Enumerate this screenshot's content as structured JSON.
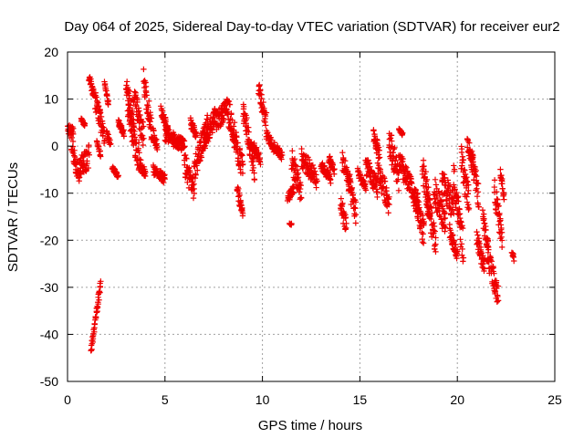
{
  "chart_data": {
    "type": "scatter",
    "title": "Day 064 of 2025, Sidereal Day-to-day VTEC variation (SDTVAR) for receiver eur2",
    "xlabel": "GPS time / hours",
    "ylabel": "SDTVAR / TECUs",
    "xlim": [
      0,
      25
    ],
    "ylim": [
      -50,
      20
    ],
    "xticks": [
      0,
      5,
      10,
      15,
      20,
      25
    ],
    "yticks": [
      -50,
      -40,
      -30,
      -20,
      -10,
      0,
      10,
      20
    ],
    "xtick_labels": [
      "0",
      "5",
      "10",
      "15",
      "20",
      "25"
    ],
    "ytick_labels": [
      "-50",
      "-40",
      "-30",
      "-20",
      "-10",
      "0",
      "10",
      "20"
    ],
    "grid": true,
    "marker": "+",
    "color": "#ee0000",
    "series": [
      {
        "name": "eur2",
        "segments": [
          [
            0.0,
            0.3,
            3.5,
            2.5,
            1.5
          ],
          [
            0.2,
            0.6,
            0.5,
            -7.0,
            2.0
          ],
          [
            0.6,
            1.1,
            -5.0,
            -2.0,
            2.5
          ],
          [
            0.7,
            0.9,
            5.5,
            4.5,
            0.4
          ],
          [
            1.1,
            1.4,
            15.0,
            10.0,
            1.0
          ],
          [
            1.4,
            1.9,
            10.0,
            2.0,
            2.0
          ],
          [
            1.2,
            1.7,
            -44.0,
            -29.0,
            1.0
          ],
          [
            1.5,
            1.7,
            1.0,
            -2.0,
            0.5
          ],
          [
            1.9,
            2.1,
            13.5,
            9.0,
            0.5
          ],
          [
            2.0,
            2.2,
            3.0,
            0.5,
            0.5
          ],
          [
            2.3,
            2.6,
            -4.5,
            -6.5,
            0.5
          ],
          [
            2.6,
            2.9,
            5.0,
            2.5,
            0.8
          ],
          [
            3.0,
            3.4,
            13.0,
            5.5,
            2.0
          ],
          [
            3.1,
            3.7,
            7.0,
            -3.0,
            3.0
          ],
          [
            3.4,
            3.9,
            11.0,
            2.0,
            2.5
          ],
          [
            3.7,
            4.0,
            -3.5,
            -6.0,
            1.0
          ],
          [
            3.9,
            4.3,
            14.0,
            4.0,
            2.5
          ],
          [
            4.3,
            4.6,
            3.0,
            0.5,
            1.5
          ],
          [
            4.4,
            5.0,
            -5.0,
            -7.0,
            1.0
          ],
          [
            4.8,
            5.2,
            7.5,
            3.0,
            1.0
          ],
          [
            5.0,
            6.0,
            2.5,
            0.0,
            1.5
          ],
          [
            6.0,
            6.5,
            -4.0,
            -9.0,
            2.5
          ],
          [
            6.3,
            6.6,
            5.0,
            2.5,
            1.0
          ],
          [
            6.5,
            7.2,
            -5.0,
            4.5,
            2.5
          ],
          [
            7.0,
            7.6,
            1.0,
            6.5,
            2.0
          ],
          [
            7.6,
            8.2,
            5.0,
            8.0,
            2.0
          ],
          [
            8.2,
            8.6,
            8.0,
            2.0,
            3.0
          ],
          [
            8.5,
            9.0,
            2.5,
            -5.0,
            2.5
          ],
          [
            8.7,
            9.0,
            -9.0,
            -15.0,
            1.5
          ],
          [
            9.0,
            9.6,
            8.0,
            -5.0,
            2.5
          ],
          [
            9.5,
            9.9,
            0.5,
            -3.0,
            1.0
          ],
          [
            9.8,
            10.2,
            12.5,
            5.0,
            2.0
          ],
          [
            10.2,
            10.6,
            2.5,
            -0.5,
            1.0
          ],
          [
            10.6,
            11.0,
            0.0,
            -2.0,
            1.0
          ],
          [
            11.3,
            11.6,
            -11.0,
            -9.0,
            1.0
          ],
          [
            11.4,
            11.5,
            -16.5,
            -16.5,
            0.3
          ],
          [
            11.5,
            12.0,
            -3.0,
            -10.0,
            2.5
          ],
          [
            12.0,
            12.8,
            -2.5,
            -7.0,
            2.0
          ],
          [
            13.0,
            13.5,
            -4.0,
            -7.0,
            1.0
          ],
          [
            13.4,
            13.7,
            -2.5,
            -5.5,
            1.0
          ],
          [
            14.0,
            14.3,
            -12.0,
            -17.0,
            2.0
          ],
          [
            14.1,
            14.5,
            -3.0,
            -8.0,
            2.0
          ],
          [
            14.4,
            14.8,
            -8.0,
            -14.0,
            2.5
          ],
          [
            14.9,
            15.3,
            -5.5,
            -9.0,
            1.0
          ],
          [
            15.3,
            15.9,
            -4.0,
            -9.0,
            2.0
          ],
          [
            15.7,
            16.0,
            2.5,
            -2.0,
            1.5
          ],
          [
            15.9,
            16.5,
            -5.0,
            -12.0,
            2.5
          ],
          [
            16.5,
            17.0,
            1.5,
            -7.0,
            3.0
          ],
          [
            17.0,
            17.2,
            3.5,
            2.5,
            0.3
          ],
          [
            17.0,
            17.6,
            -3.0,
            -9.0,
            2.5
          ],
          [
            17.6,
            18.0,
            -8.0,
            -14.0,
            2.0
          ],
          [
            17.8,
            18.3,
            -10.0,
            -19.0,
            3.0
          ],
          [
            18.2,
            18.6,
            -5.0,
            -13.0,
            3.0
          ],
          [
            18.4,
            18.9,
            -10.0,
            -21.0,
            3.0
          ],
          [
            18.8,
            19.4,
            -9.0,
            -17.0,
            3.0
          ],
          [
            19.2,
            19.8,
            -7.0,
            -13.0,
            3.0
          ],
          [
            19.6,
            20.0,
            -18.0,
            -23.5,
            1.5
          ],
          [
            19.8,
            20.3,
            -6.0,
            -22.0,
            3.5
          ],
          [
            20.2,
            20.6,
            -3.0,
            -12.0,
            3.0
          ],
          [
            20.5,
            20.8,
            0.5,
            -3.0,
            1.5
          ],
          [
            20.7,
            21.1,
            -2.0,
            -11.0,
            2.5
          ],
          [
            21.0,
            21.4,
            -20.0,
            -25.5,
            2.0
          ],
          [
            21.3,
            21.6,
            -15.0,
            -22.0,
            2.0
          ],
          [
            21.5,
            22.1,
            -22.0,
            -32.0,
            2.5
          ],
          [
            21.9,
            22.3,
            -9.0,
            -20.0,
            2.5
          ],
          [
            22.2,
            22.4,
            -5.5,
            -11.0,
            1.0
          ],
          [
            22.8,
            22.9,
            -22.5,
            -24.0,
            0.5
          ]
        ]
      }
    ]
  }
}
